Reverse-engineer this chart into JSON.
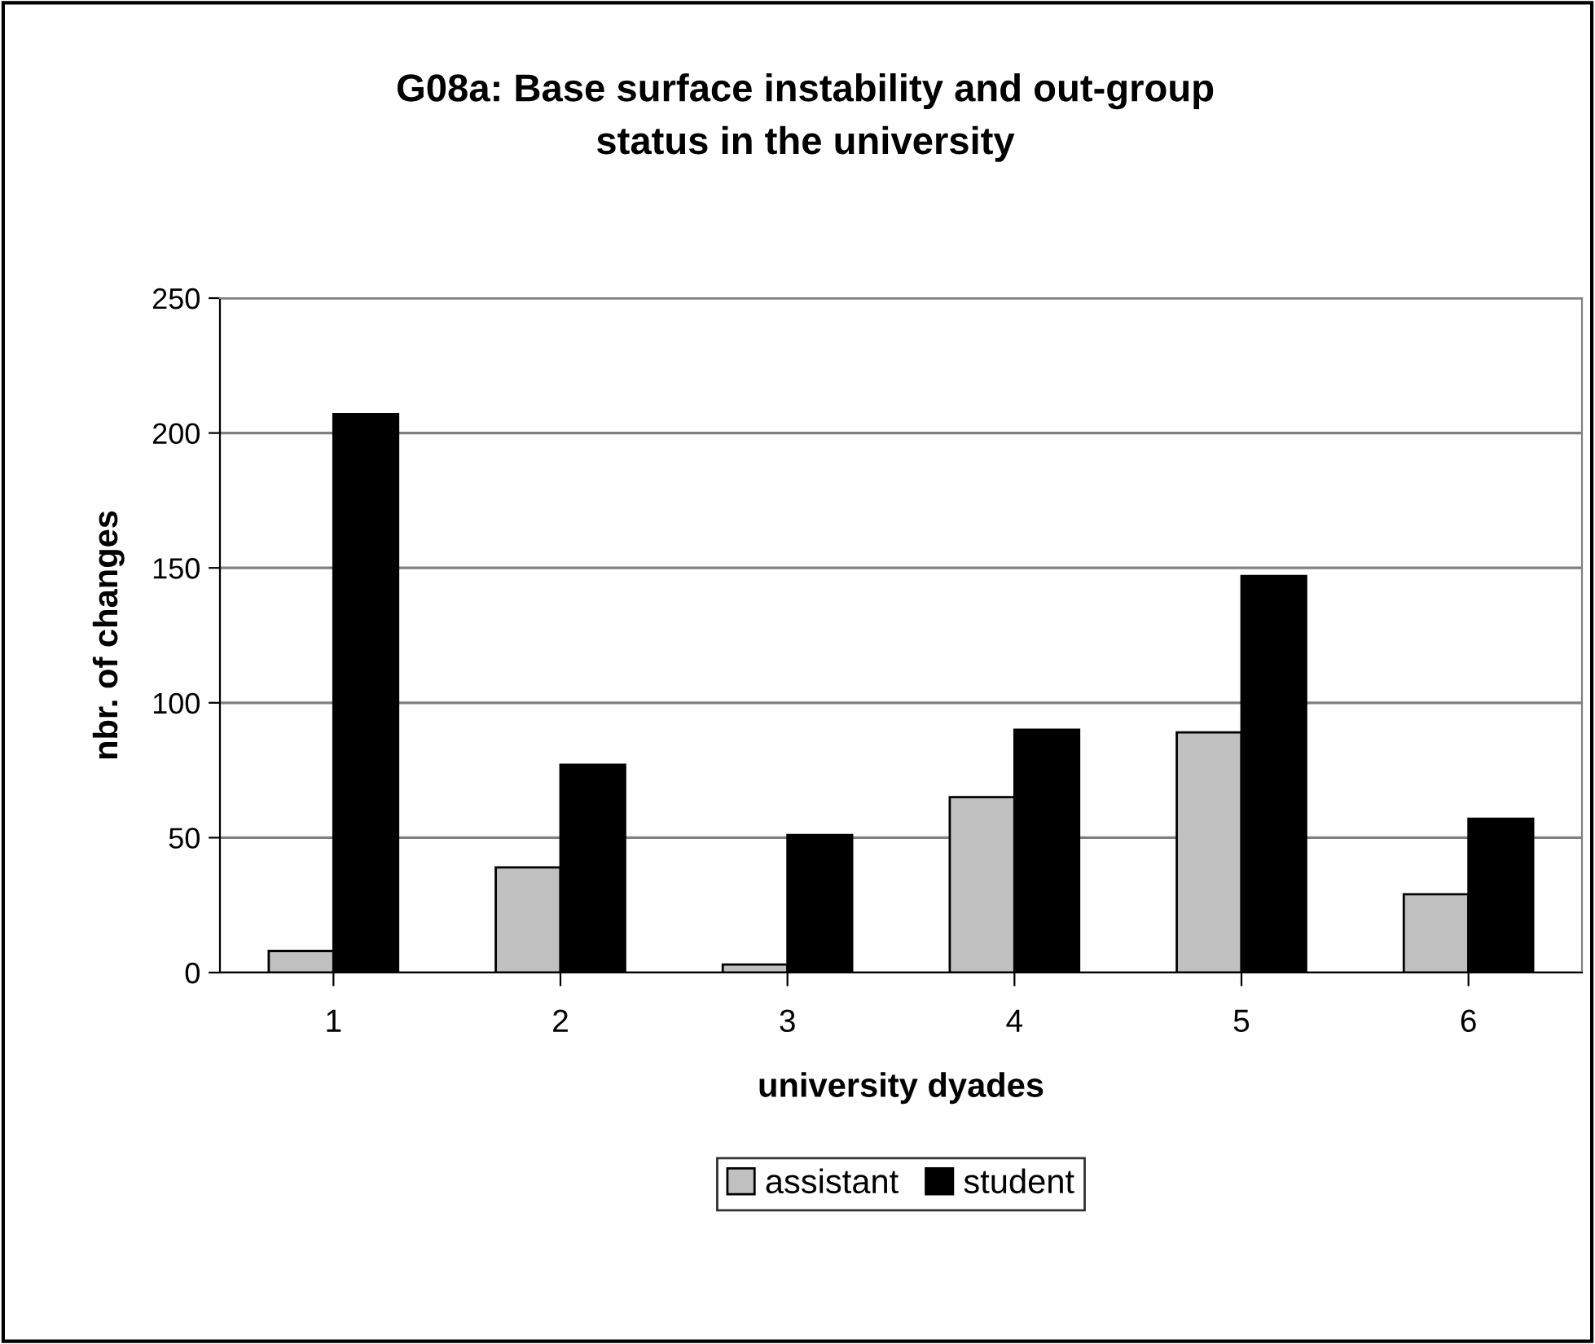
{
  "chart_data": {
    "type": "bar",
    "title": "G08a: Base surface instability and out-group\nstatus in the university",
    "xlabel": "university dyades",
    "ylabel": "nbr. of changes",
    "categories": [
      "1",
      "2",
      "3",
      "4",
      "5",
      "6"
    ],
    "series": [
      {
        "name": "assistant",
        "color": "#c0c0c0",
        "values": [
          8,
          39,
          3,
          65,
          89,
          29
        ]
      },
      {
        "name": "student",
        "color": "#000000",
        "values": [
          207,
          77,
          51,
          90,
          147,
          57
        ]
      }
    ],
    "ylim": [
      0,
      250
    ],
    "yticks": [
      0,
      50,
      100,
      150,
      200,
      250
    ],
    "grid": "y",
    "legend": "bottom"
  }
}
